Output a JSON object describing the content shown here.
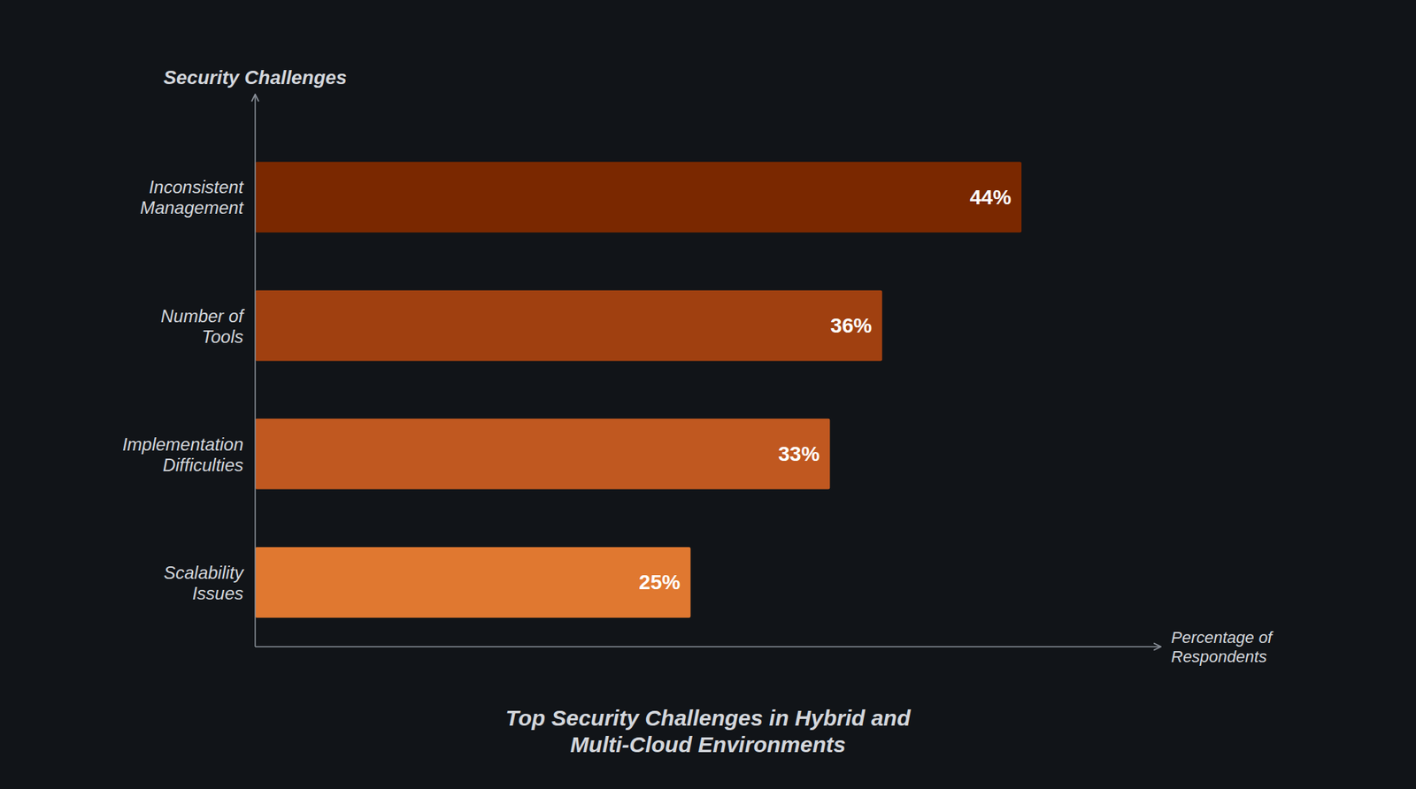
{
  "chart_data": {
    "type": "bar",
    "orientation": "horizontal",
    "title": "Top Security Challenges in Hybrid and\nMulti-Cloud Environments",
    "categories": [
      "Scalability\nIssues",
      "Implementation\nDifficulties",
      "Number of\nTools",
      "Inconsistent\nManagement"
    ],
    "values": [
      25,
      33,
      36,
      44
    ],
    "value_labels": [
      "25%",
      "33%",
      "36%",
      "44%"
    ],
    "colors": [
      "#E07830",
      "#C05820",
      "#A04010",
      "#7A2800"
    ],
    "xlabel": "Percentage of\nRespondents",
    "ylabel": "Security Challenges",
    "xlim": [
      0,
      52
    ],
    "data_labels": true,
    "tick_labels": "y",
    "grid": false
  }
}
